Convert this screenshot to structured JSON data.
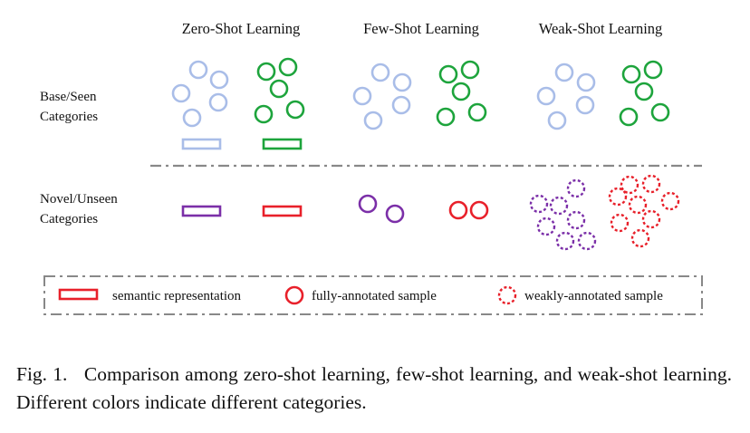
{
  "columns": [
    "Zero-Shot Learning",
    "Few-Shot Learning",
    "Weak-Shot Learning"
  ],
  "rows": {
    "base": [
      "Base/Seen",
      "Categories"
    ],
    "novel": [
      "Novel/Unseen",
      "Categories"
    ]
  },
  "legend": {
    "semantic": "semantic representation",
    "full": "fully-annotated sample",
    "weak": "weakly-annotated sample"
  },
  "caption": {
    "label": "Fig. 1.",
    "text": "Comparison among zero-shot learning, few-shot learning, and weak-shot learning. Different colors indicate different categories."
  },
  "colors": {
    "base_category_1": "#a9bde8",
    "base_category_2": "#1da43c",
    "novel_category_1": "#7b2fa8",
    "novel_category_2": "#e8202a",
    "separator": "#888888"
  }
}
